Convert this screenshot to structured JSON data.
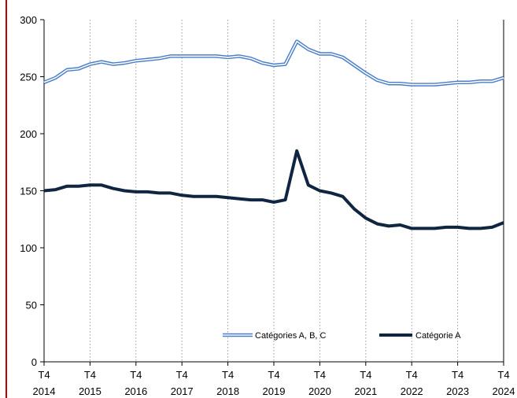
{
  "colors": {
    "page_border": "#c00000",
    "grid": "#9a9a9a",
    "axis": "#000000",
    "series_abc_outer": "#4a7ec9",
    "series_abc_inner": "#ffffff",
    "series_a": "#0f2540"
  },
  "chart_data": {
    "type": "line",
    "title": "",
    "xlabel": "",
    "ylabel": "",
    "ylim": [
      0,
      300
    ],
    "yticks": [
      0,
      50,
      100,
      150,
      200,
      250,
      300
    ],
    "grid": "vertical dotted at each year",
    "legend_position": "bottom-center",
    "x_ticks": [
      {
        "quarter": "T4",
        "year": "2014",
        "index": 0
      },
      {
        "quarter": "T4",
        "year": "2015",
        "index": 4
      },
      {
        "quarter": "T4",
        "year": "2016",
        "index": 8
      },
      {
        "quarter": "T4",
        "year": "2017",
        "index": 12
      },
      {
        "quarter": "T4",
        "year": "2018",
        "index": 16
      },
      {
        "quarter": "T4",
        "year": "2019",
        "index": 20
      },
      {
        "quarter": "T4",
        "year": "2020",
        "index": 24
      },
      {
        "quarter": "T4",
        "year": "2021",
        "index": 28
      },
      {
        "quarter": "T4",
        "year": "2022",
        "index": 32
      },
      {
        "quarter": "T4",
        "year": "2023",
        "index": 36
      },
      {
        "quarter": "T4",
        "year": "2024",
        "index": 40
      }
    ],
    "x": [
      "T4 2014",
      "T1 2015",
      "T2 2015",
      "T3 2015",
      "T4 2015",
      "T1 2016",
      "T2 2016",
      "T3 2016",
      "T4 2016",
      "T1 2017",
      "T2 2017",
      "T3 2017",
      "T4 2017",
      "T1 2018",
      "T2 2018",
      "T3 2018",
      "T4 2018",
      "T1 2019",
      "T2 2019",
      "T3 2019",
      "T4 2019",
      "T1 2020",
      "T2 2020",
      "T3 2020",
      "T4 2020",
      "T1 2021",
      "T2 2021",
      "T3 2021",
      "T4 2021",
      "T1 2022",
      "T2 2022",
      "T3 2022",
      "T4 2022",
      "T1 2023",
      "T2 2023",
      "T3 2023",
      "T4 2023",
      "T1 2024",
      "T2 2024",
      "T3 2024",
      "T4 2024"
    ],
    "series": [
      {
        "name": "Catégories A, B, C",
        "style": "double-line",
        "values": [
          245,
          249,
          256,
          257,
          261,
          263,
          261,
          262,
          264,
          265,
          266,
          268,
          268,
          268,
          268,
          268,
          267,
          268,
          266,
          262,
          260,
          261,
          281,
          274,
          270,
          270,
          267,
          260,
          253,
          247,
          244,
          244,
          243,
          243,
          243,
          244,
          245,
          245,
          246,
          246,
          249
        ]
      },
      {
        "name": "Catégorie A",
        "style": "thick-line",
        "values": [
          150,
          151,
          154,
          154,
          155,
          155,
          152,
          150,
          149,
          149,
          148,
          148,
          146,
          145,
          145,
          145,
          144,
          143,
          142,
          142,
          140,
          142,
          185,
          155,
          150,
          148,
          145,
          134,
          126,
          121,
          119,
          120,
          117,
          117,
          117,
          118,
          118,
          117,
          117,
          118,
          122
        ]
      }
    ]
  }
}
